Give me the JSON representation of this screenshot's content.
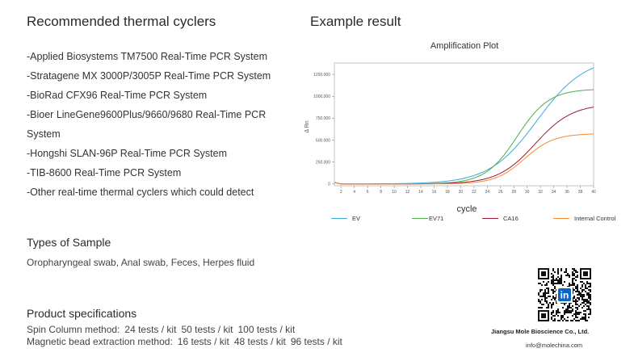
{
  "section_cyclers": {
    "title": "Recommended thermal cyclers",
    "items": [
      "-Applied Biosystems TM7500 Real-Time PCR System",
      "-Stratagene MX 3000P/3005P Real-Time PCR System",
      "-BioRad CFX96 Real-Time PCR System",
      "-Bioer LineGene9600Plus/9660/9680 Real-Time PCR System",
      "-Hongshi SLAN-96P Real-Time PCR System",
      "-TIB-8600 Real-Time PCR System",
      "-Other real-time thermal cyclers which could detect"
    ]
  },
  "section_example": {
    "title": "Example result"
  },
  "section_sample": {
    "title": "Types of Sample",
    "text": "Oropharyngeal swab, Anal swab, Feces, Herpes fluid"
  },
  "section_specs": {
    "title": "Product specifications",
    "rows": [
      {
        "method": "Spin Column method:",
        "options": [
          "24 tests / kit",
          "50 tests / kit",
          "100 tests / kit"
        ]
      },
      {
        "method": "Magnetic bead extraction method:",
        "options": [
          "16 tests / kit",
          "48 tests / kit",
          "96 tests / kit"
        ]
      }
    ]
  },
  "company": {
    "name": "Jiangsu Mole Bioscience Co., Ltd.",
    "email": "info@molechina.com",
    "qr_badge_text": "in"
  },
  "chart_data": {
    "type": "line",
    "title": "Amplification Plot",
    "xlabel": "cycle",
    "ylabel": "Δ Rn",
    "xlim": [
      1,
      40
    ],
    "ylim": [
      -20,
      1380
    ],
    "x_ticks": [
      2,
      4,
      6,
      8,
      10,
      12,
      14,
      16,
      18,
      20,
      22,
      24,
      26,
      28,
      30,
      32,
      34,
      36,
      38,
      40
    ],
    "y_ticks": [
      0,
      250,
      500,
      750,
      1000,
      1250
    ],
    "y_tick_labels": [
      "0",
      "250.000",
      "500.000",
      "750.000",
      "1000.000",
      "1250.000"
    ],
    "grid": "none",
    "legend_position": "bottom",
    "series": [
      {
        "name": "EV",
        "color": "#3ba9d9",
        "ct": 31.5,
        "plateau": 1450,
        "slope": 3.6
      },
      {
        "name": "EV71",
        "color": "#4caf50",
        "ct": 28.5,
        "plateau": 1085,
        "slope": 2.4
      },
      {
        "name": "CA16",
        "color": "#9e1b32",
        "ct": 31.2,
        "plateau": 915,
        "slope": 2.8
      },
      {
        "name": "Internal Control",
        "color": "#f08c3c",
        "ct": 29.6,
        "plateau": 575,
        "slope": 2.2
      }
    ]
  }
}
